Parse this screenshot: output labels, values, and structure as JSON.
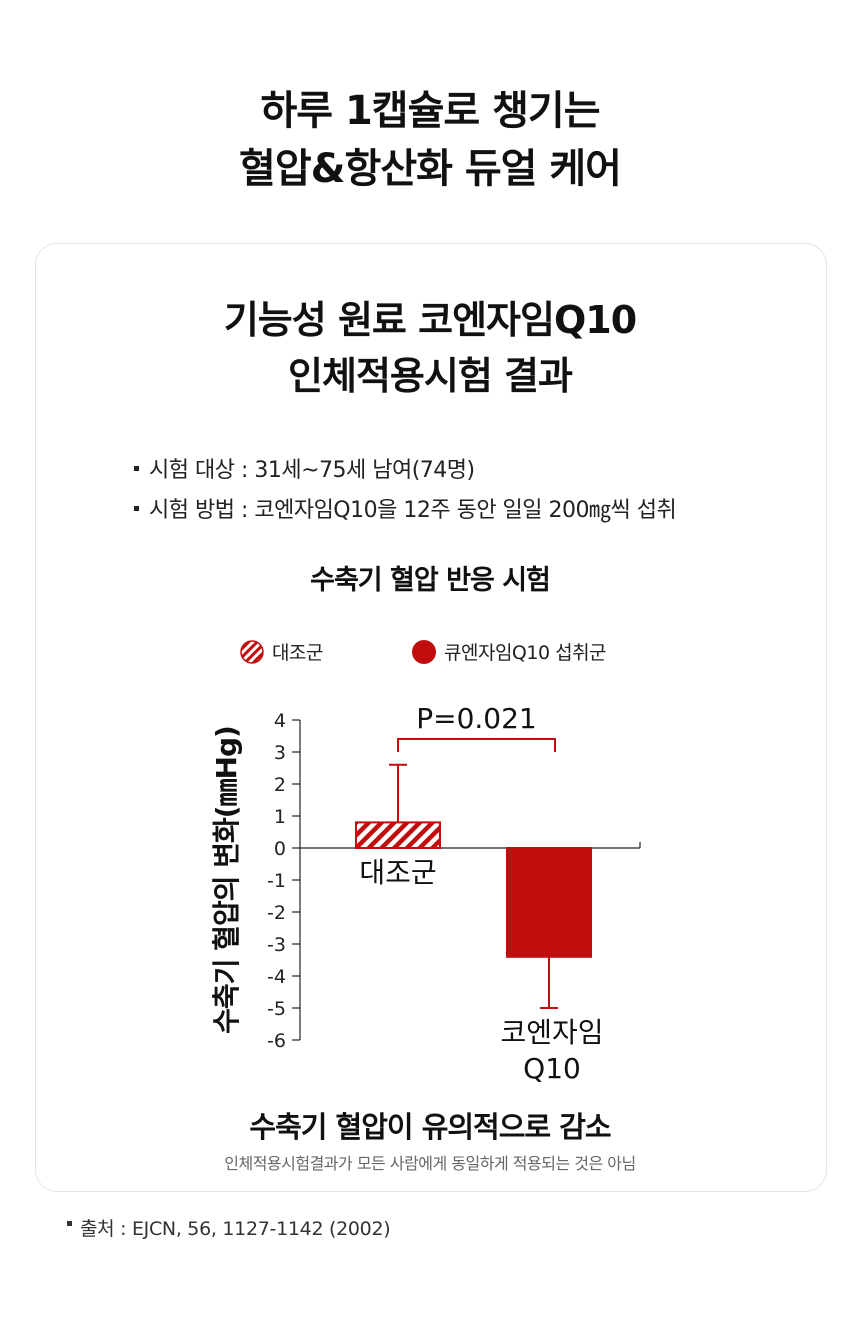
{
  "headline": {
    "line1": "하루 1캡슐로 챙기는",
    "line2": "혈압&항산화 듀얼 케어"
  },
  "card": {
    "title_line1": "기능성 원료 코엔자임Q10",
    "title_line2": "인체적용시험 결과",
    "info": [
      "시험 대상 : 31세~75세 남여(74명)",
      "시험 방법 : 코엔자임Q10을 12주 동안 일일 200㎎씩 섭취"
    ],
    "chart_title": "수축기 혈압 반응 시험",
    "conclusion": "수축기 혈압이 유의적으로 감소",
    "disclaimer": "인체적용시험결과가 모든 사람에게 동일하게 적용되는 것은 아님"
  },
  "legend": [
    {
      "label": "대조군",
      "style": "hatched"
    },
    {
      "label": "큐엔자임Q10 섭취군",
      "style": "solid"
    }
  ],
  "colors": {
    "accent": "#c00d0d",
    "hatch_light": "#ffffff",
    "text": "#111111"
  },
  "chart_data": {
    "type": "bar",
    "categories": [
      "대조군",
      "코엔자임\nQ10"
    ],
    "values": [
      0.8,
      -3.4
    ],
    "error_bars": [
      {
        "upper": 2.6
      },
      {
        "lower": -5.0
      }
    ],
    "ylabel": "수축기 혈압의 변화(㎜Hg)",
    "xlabel": "",
    "ylim": [
      -6,
      4
    ],
    "yticks": [
      "4",
      "3",
      "2",
      "1",
      "0",
      "-1",
      "-2",
      "-3",
      "-4",
      "-5",
      "-6"
    ],
    "annotation": "P=0.021",
    "grid": false
  },
  "source": "출처 : EJCN, 56, 1127-1142 (2002)"
}
